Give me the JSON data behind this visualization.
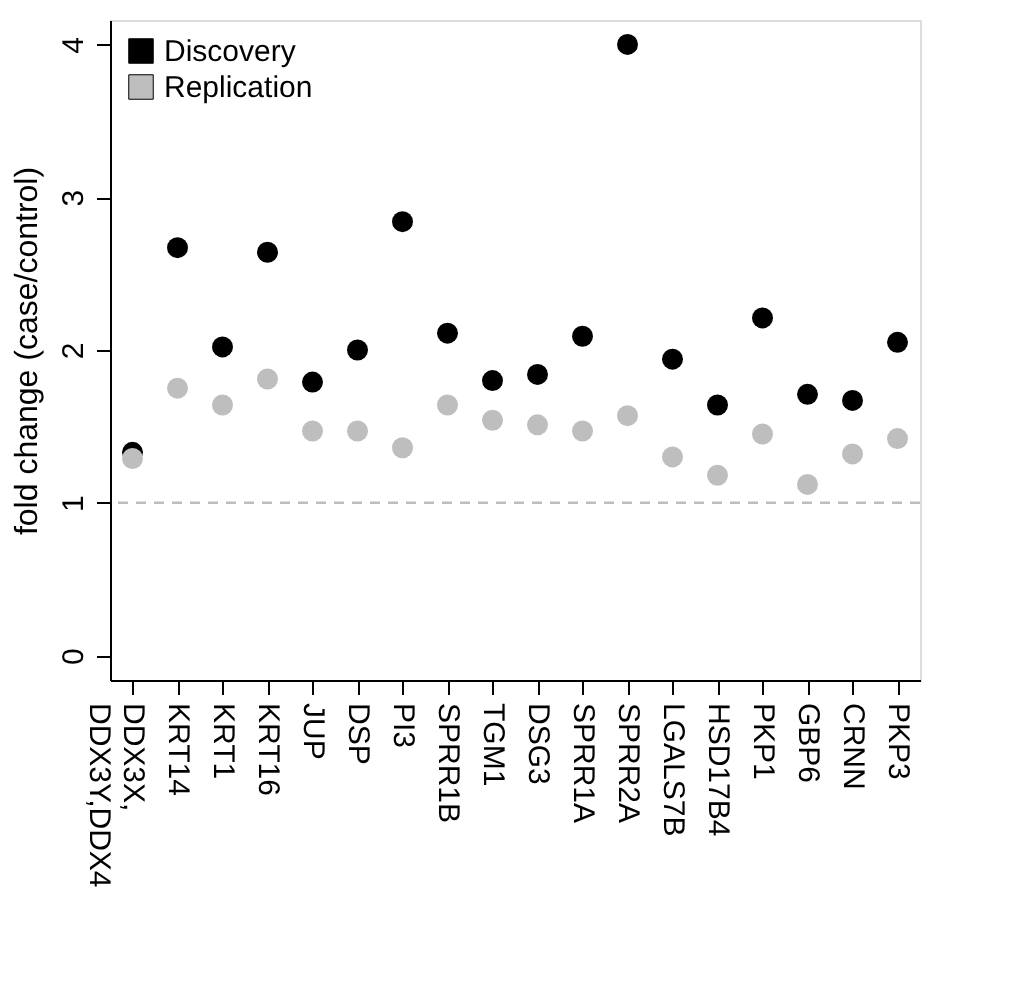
{
  "chart_data": {
    "type": "scatter",
    "ylabel": "fold change (case/control)",
    "categories": [
      "DDX3X,\nDDX3Y,DDX4",
      "KRT14",
      "KRT1",
      "KRT16",
      "JUP",
      "DSP",
      "PI3",
      "SPRR1B",
      "TGM1",
      "DSG3",
      "SPRR1A",
      "SPRR2A",
      "LGALS7B",
      "HSD17B4",
      "PKP1",
      "GBP6",
      "CRNN",
      "PKP3"
    ],
    "series": [
      {
        "name": "Discovery",
        "color": "#000000",
        "values": [
          1.33,
          2.67,
          2.02,
          2.64,
          1.79,
          2.0,
          2.84,
          2.11,
          1.8,
          1.84,
          2.09,
          4.0,
          1.94,
          1.64,
          2.21,
          1.71,
          1.67,
          2.05
        ]
      },
      {
        "name": "Replication",
        "color": "#bebebe",
        "values": [
          1.29,
          1.75,
          1.64,
          1.81,
          1.47,
          1.47,
          1.36,
          1.64,
          1.54,
          1.51,
          1.47,
          1.57,
          1.3,
          1.18,
          1.45,
          1.12,
          1.32,
          1.42
        ]
      }
    ],
    "ylim": [
      -0.16,
      4.16
    ],
    "yticks": [
      0,
      1,
      2,
      3,
      4
    ],
    "ref_lines": [
      {
        "axis": "y",
        "value": 1,
        "color": "#bebebe",
        "line_style": "dashed"
      }
    ],
    "marker": "circle",
    "legend": "top left",
    "grid": false
  }
}
